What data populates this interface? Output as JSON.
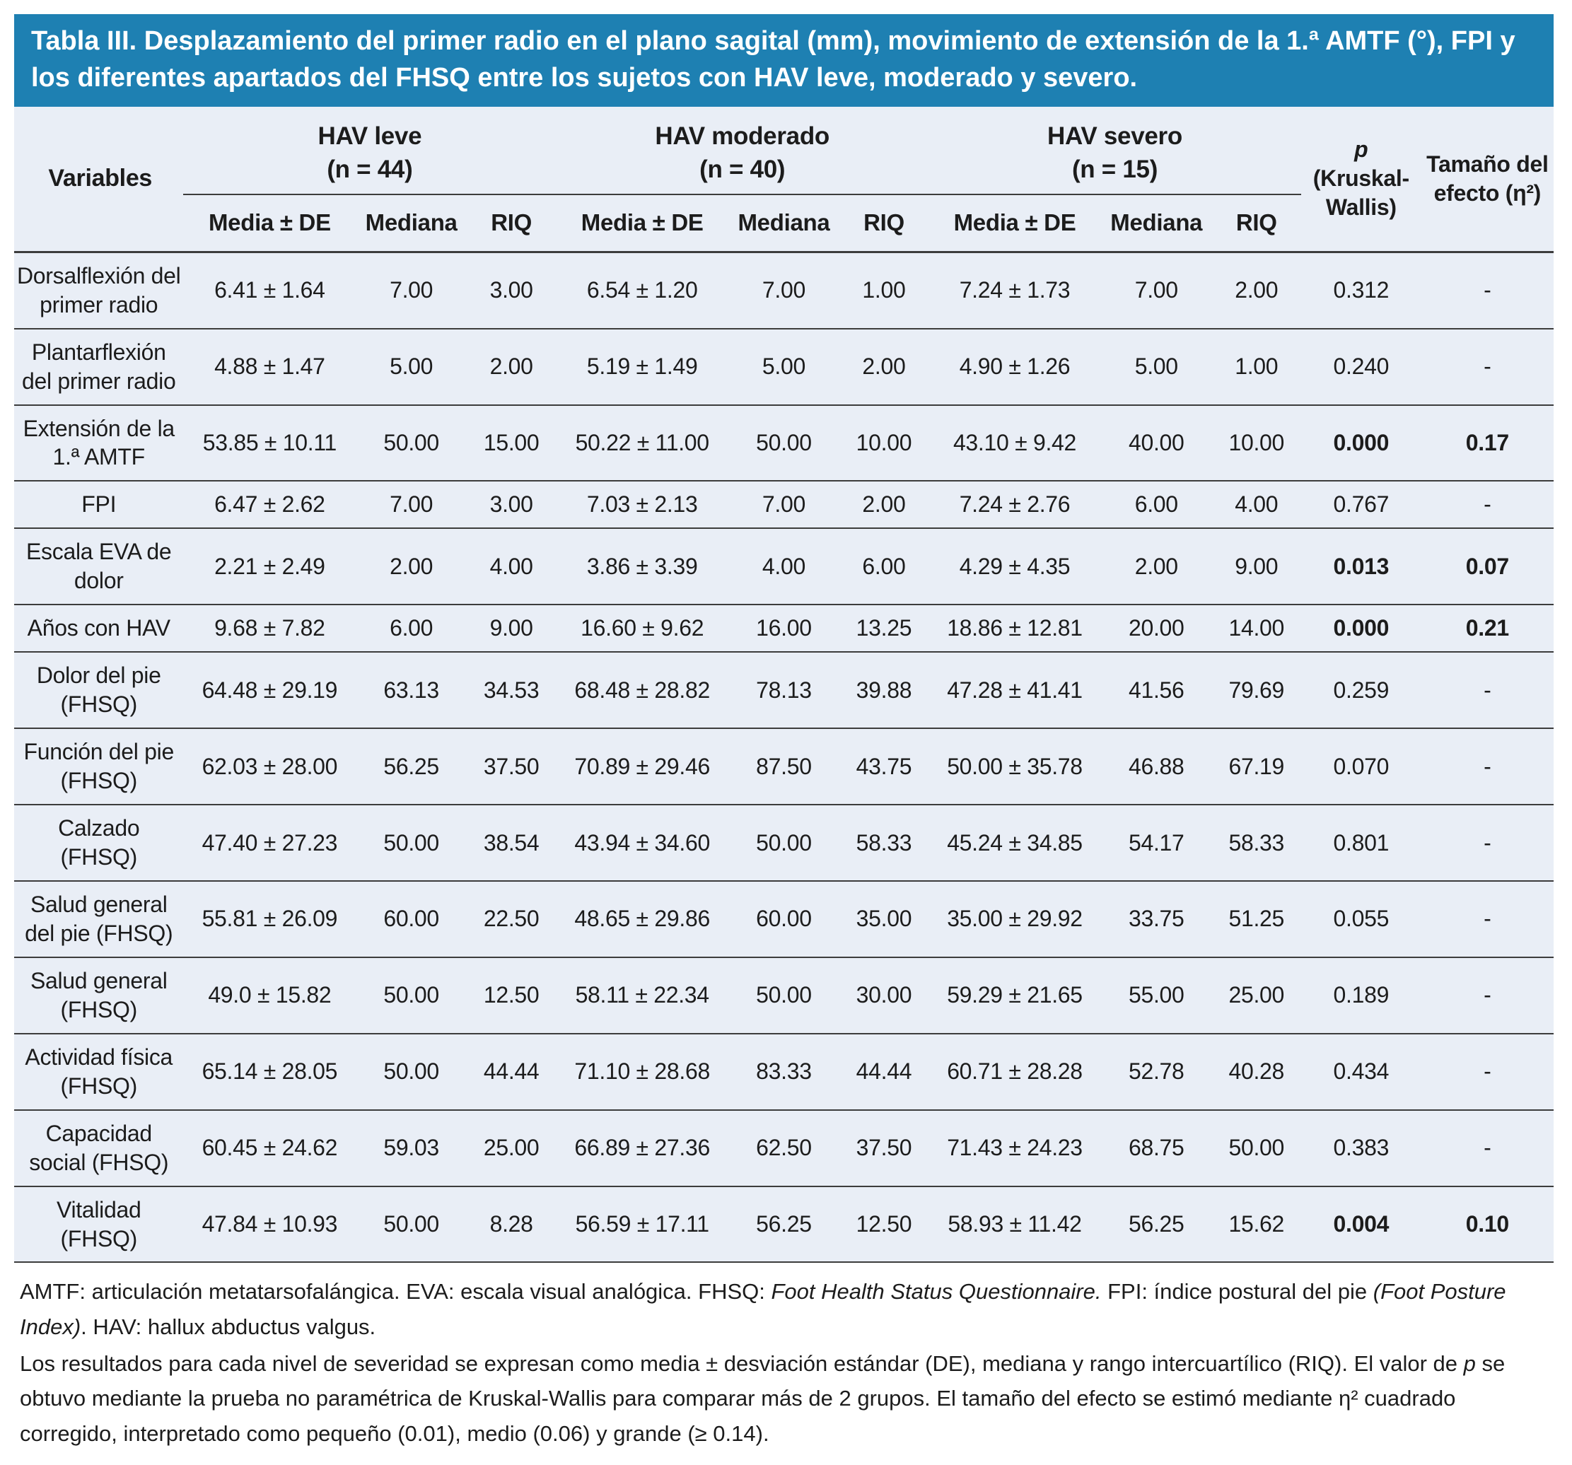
{
  "title": "Tabla III. Desplazamiento del primer radio en el plano sagital (mm), movimiento de extensión de la 1.ª AMTF (°), FPI y los diferentes apartados del FHSQ entre los sujetos con HAV leve, moderado y severo.",
  "colors": {
    "header_bg": "#1e80b2",
    "table_bg": "#e9eef6",
    "text": "#1c1c1c",
    "rule": "#3c3c3c"
  },
  "table": {
    "variables_header": "Variables",
    "groups": [
      {
        "name": "HAV leve",
        "n": "(n = 44)"
      },
      {
        "name": "HAV moderado",
        "n": "(n = 40)"
      },
      {
        "name": "HAV severo",
        "n": "(n = 15)"
      }
    ],
    "sub_headers": [
      "Media ± DE",
      "Mediana",
      "RIQ"
    ],
    "p_header": {
      "label": "p",
      "test": "(Kruskal-Wallis)"
    },
    "effect_header": "Tamaño del efecto (η²)",
    "rows": [
      {
        "variable": "Dorsalflexión del primer radio",
        "values": [
          "6.41 ± 1.64",
          "7.00",
          "3.00",
          "6.54 ± 1.20",
          "7.00",
          "1.00",
          "7.24 ± 1.73",
          "7.00",
          "2.00"
        ],
        "p": "0.312",
        "effect": "-",
        "significant": false
      },
      {
        "variable": "Plantarflexión del primer radio",
        "values": [
          "4.88 ± 1.47",
          "5.00",
          "2.00",
          "5.19 ± 1.49",
          "5.00",
          "2.00",
          "4.90 ± 1.26",
          "5.00",
          "1.00"
        ],
        "p": "0.240",
        "effect": "-",
        "significant": false
      },
      {
        "variable": "Extensión de la 1.ª AMTF",
        "values": [
          "53.85 ± 10.11",
          "50.00",
          "15.00",
          "50.22 ± 11.00",
          "50.00",
          "10.00",
          "43.10 ± 9.42",
          "40.00",
          "10.00"
        ],
        "p": "0.000",
        "effect": "0.17",
        "significant": true
      },
      {
        "variable": "FPI",
        "values": [
          "6.47 ± 2.62",
          "7.00",
          "3.00",
          "7.03 ± 2.13",
          "7.00",
          "2.00",
          "7.24 ± 2.76",
          "6.00",
          "4.00"
        ],
        "p": "0.767",
        "effect": "-",
        "significant": false
      },
      {
        "variable": "Escala EVA de dolor",
        "values": [
          "2.21 ± 2.49",
          "2.00",
          "4.00",
          "3.86 ± 3.39",
          "4.00",
          "6.00",
          "4.29 ± 4.35",
          "2.00",
          "9.00"
        ],
        "p": "0.013",
        "effect": "0.07",
        "significant": true
      },
      {
        "variable": "Años con HAV",
        "values": [
          "9.68 ± 7.82",
          "6.00",
          "9.00",
          "16.60 ± 9.62",
          "16.00",
          "13.25",
          "18.86 ± 12.81",
          "20.00",
          "14.00"
        ],
        "p": "0.000",
        "effect": "0.21",
        "significant": true
      },
      {
        "variable": "Dolor del pie (FHSQ)",
        "values": [
          "64.48 ± 29.19",
          "63.13",
          "34.53",
          "68.48 ± 28.82",
          "78.13",
          "39.88",
          "47.28 ± 41.41",
          "41.56",
          "79.69"
        ],
        "p": "0.259",
        "effect": "-",
        "significant": false
      },
      {
        "variable": "Función del pie (FHSQ)",
        "values": [
          "62.03 ± 28.00",
          "56.25",
          "37.50",
          "70.89 ± 29.46",
          "87.50",
          "43.75",
          "50.00 ± 35.78",
          "46.88",
          "67.19"
        ],
        "p": "0.070",
        "effect": "-",
        "significant": false
      },
      {
        "variable": "Calzado (FHSQ)",
        "values": [
          "47.40 ± 27.23",
          "50.00",
          "38.54",
          "43.94 ± 34.60",
          "50.00",
          "58.33",
          "45.24 ± 34.85",
          "54.17",
          "58.33"
        ],
        "p": "0.801",
        "effect": "-",
        "significant": false
      },
      {
        "variable": "Salud general del pie (FHSQ)",
        "values": [
          "55.81 ± 26.09",
          "60.00",
          "22.50",
          "48.65 ± 29.86",
          "60.00",
          "35.00",
          "35.00 ± 29.92",
          "33.75",
          "51.25"
        ],
        "p": "0.055",
        "effect": "-",
        "significant": false
      },
      {
        "variable": "Salud general (FHSQ)",
        "values": [
          "49.0 ± 15.82",
          "50.00",
          "12.50",
          "58.11 ± 22.34",
          "50.00",
          "30.00",
          "59.29 ± 21.65",
          "55.00",
          "25.00"
        ],
        "p": "0.189",
        "effect": "-",
        "significant": false
      },
      {
        "variable": "Actividad física (FHSQ)",
        "values": [
          "65.14 ± 28.05",
          "50.00",
          "44.44",
          "71.10 ± 28.68",
          "83.33",
          "44.44",
          "60.71 ± 28.28",
          "52.78",
          "40.28"
        ],
        "p": "0.434",
        "effect": "-",
        "significant": false
      },
      {
        "variable": "Capacidad social (FHSQ)",
        "values": [
          "60.45 ± 24.62",
          "59.03",
          "25.00",
          "66.89 ± 27.36",
          "62.50",
          "37.50",
          "71.43 ± 24.23",
          "68.75",
          "50.00"
        ],
        "p": "0.383",
        "effect": "-",
        "significant": false
      },
      {
        "variable": "Vitalidad (FHSQ)",
        "values": [
          "47.84 ± 10.93",
          "50.00",
          "8.28",
          "56.59 ± 17.11",
          "56.25",
          "12.50",
          "58.93 ± 11.42",
          "56.25",
          "15.62"
        ],
        "p": "0.004",
        "effect": "0.10",
        "significant": true
      }
    ]
  },
  "footnotes": [
    [
      {
        "text": "AMTF: articulación metatarsofalángica. EVA: escala visual analógica. FHSQ: "
      },
      {
        "text": "Foot Health Status Questionnaire.",
        "italic": true
      },
      {
        "text": " FPI: índice postural del pie "
      },
      {
        "text": "(Foot Posture Index)",
        "italic": true
      },
      {
        "text": ". HAV: hallux abductus valgus."
      }
    ],
    [
      {
        "text": "Los resultados para cada nivel de severidad se expresan como media ± desviación estándar (DE), mediana y rango intercuartílico (RIQ). El valor de "
      },
      {
        "text": "p",
        "italic": true
      },
      {
        "text": " se obtuvo mediante la prueba no paramétrica de Kruskal-Wallis para comparar más de 2 grupos. El tamaño del efecto se estimó mediante η² cuadrado corregido, interpretado como pequeño (0.01), medio (0.06) y grande (≥ 0.14)."
      }
    ]
  ]
}
